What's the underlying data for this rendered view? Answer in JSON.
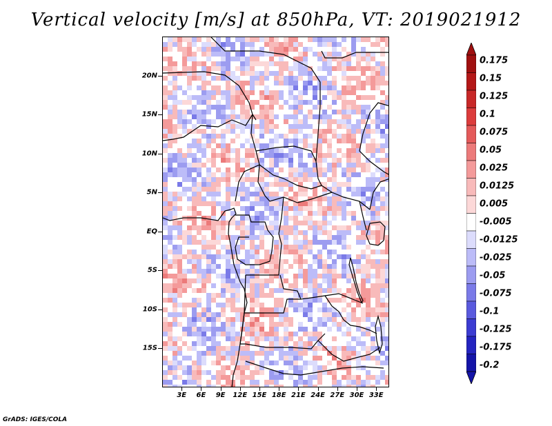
{
  "title": "Vertical velocity [m/s] at 850hPa, VT: 2019021912",
  "footer": "GrADS: IGES/COLA",
  "map": {
    "lon_range": [
      0,
      35
    ],
    "lat_range": [
      -20,
      25
    ],
    "lat_labels": [
      {
        "lat": 20,
        "label": "20N"
      },
      {
        "lat": 15,
        "label": "15N"
      },
      {
        "lat": 10,
        "label": "10N"
      },
      {
        "lat": 5,
        "label": "5N"
      },
      {
        "lat": 0,
        "label": "EQ"
      },
      {
        "lat": -5,
        "label": "5S"
      },
      {
        "lat": -10,
        "label": "10S"
      },
      {
        "lat": -15,
        "label": "15S"
      }
    ],
    "lon_labels": [
      {
        "lon": 3,
        "label": "3E"
      },
      {
        "lon": 6,
        "label": "6E"
      },
      {
        "lon": 9,
        "label": "9E"
      },
      {
        "lon": 12,
        "label": "12E"
      },
      {
        "lon": 15,
        "label": "15E"
      },
      {
        "lon": 18,
        "label": "18E"
      },
      {
        "lon": 21,
        "label": "21E"
      },
      {
        "lon": 24,
        "label": "24E"
      },
      {
        "lon": 27,
        "label": "27E"
      },
      {
        "lon": 30,
        "label": "30E"
      },
      {
        "lon": 33,
        "label": "33E"
      }
    ]
  },
  "colorbar": {
    "levels": [
      {
        "label": "0.175",
        "color": "#a01010"
      },
      {
        "label": "0.15",
        "color": "#b41818"
      },
      {
        "label": "0.125",
        "color": "#c82828"
      },
      {
        "label": "0.1",
        "color": "#dc3c3c"
      },
      {
        "label": "0.075",
        "color": "#e45a5a"
      },
      {
        "label": "0.05",
        "color": "#ec7a7a"
      },
      {
        "label": "0.025",
        "color": "#f49a9a"
      },
      {
        "label": "0.0125",
        "color": "#f8baba"
      },
      {
        "label": "0.005",
        "color": "#fcd8d8"
      },
      {
        "label": "-0.005",
        "color": "#ffffff"
      },
      {
        "label": "-0.0125",
        "color": "#dcdcfc"
      },
      {
        "label": "-0.025",
        "color": "#bcbcf8"
      },
      {
        "label": "-0.05",
        "color": "#9c9cf0"
      },
      {
        "label": "-0.075",
        "color": "#7a7ae8"
      },
      {
        "label": "-0.1",
        "color": "#5a5ade"
      },
      {
        "label": "-0.125",
        "color": "#3c3cd2"
      },
      {
        "label": "-0.175",
        "color": "#2424c0"
      },
      {
        "label": "-0.2",
        "color": "#1414a8"
      }
    ],
    "top_color": "#a01010",
    "bottom_color": "#1414a8"
  }
}
